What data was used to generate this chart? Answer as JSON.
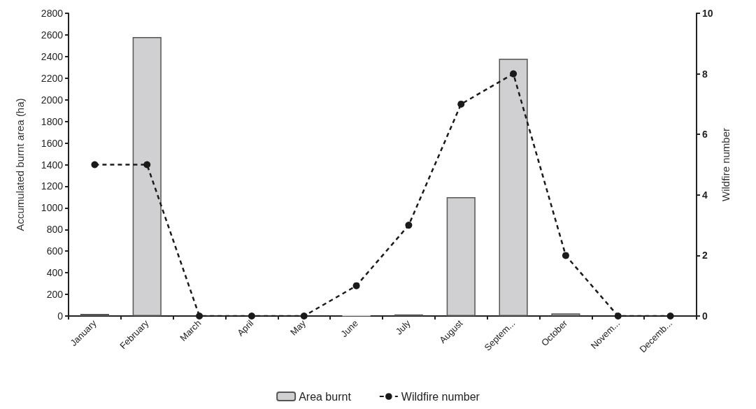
{
  "chart_data": {
    "type": "bar",
    "ylabel": "Accumulated burnt area (ha)",
    "y2label": "Wildfire number",
    "categories": [
      "January",
      "February",
      "March",
      "April",
      "May",
      "June",
      "July",
      "August",
      "Septem...",
      "October",
      "Novem...",
      "Decemb..."
    ],
    "series": [
      {
        "name": "Area burnt",
        "color": "#d0d0d2",
        "values": [
          20,
          2580,
          0,
          0,
          0,
          5,
          15,
          1100,
          2380,
          25,
          0,
          0
        ]
      },
      {
        "name": "Wildfire number",
        "type": "line",
        "axis": "y2",
        "color": "#1a1a1a",
        "marker": "circle",
        "line_style": "dashed",
        "values": [
          5,
          5,
          0,
          0,
          0,
          1,
          3,
          7,
          8,
          2,
          0,
          0
        ]
      }
    ],
    "ylim": [
      0,
      2800
    ],
    "yticks": [
      0,
      200,
      400,
      600,
      800,
      1000,
      1200,
      1400,
      1600,
      1800,
      2000,
      2200,
      2400,
      2600,
      2800
    ],
    "y2lim": [
      0,
      10
    ],
    "y2ticks": [
      0,
      2,
      4,
      6,
      8,
      10
    ],
    "grid": false,
    "legend": "bottom"
  }
}
